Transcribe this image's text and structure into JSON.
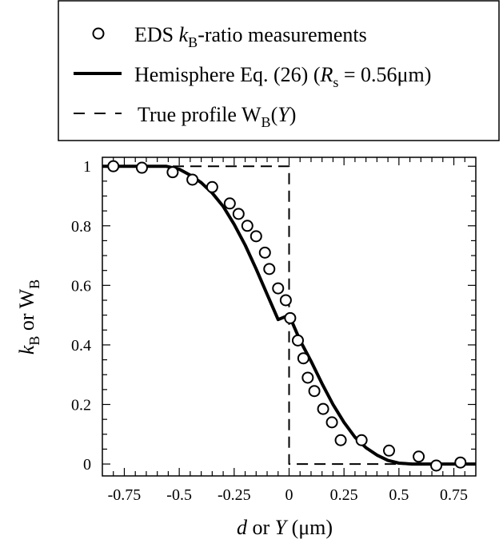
{
  "chart_data": {
    "type": "line",
    "xlabel": {
      "italic": "d",
      "mid": " or ",
      "italic2": "Y",
      "unit": " (μm)"
    },
    "ylabel": {
      "italic": "k",
      "sub": "B",
      "mid": " or W",
      "sub2": "B"
    },
    "xlim": [
      -0.85,
      0.85
    ],
    "ylim": [
      -0.04,
      1.03
    ],
    "x_ticks": [
      -0.75,
      -0.5,
      -0.25,
      0,
      0.25,
      0.5,
      0.75
    ],
    "x_tick_labels": [
      "-0.75",
      "-0.5",
      "-0.25",
      "0",
      "0.25",
      "0.5",
      "0.75"
    ],
    "y_ticks": [
      0,
      0.2,
      0.4,
      0.6,
      0.8,
      1
    ],
    "y_tick_labels": [
      "0",
      "0.2",
      "0.4",
      "0.6",
      "0.8",
      "1"
    ],
    "legend": {
      "placement": "top",
      "items": [
        {
          "kind": "marker",
          "parts": [
            {
              "t": "EDS "
            },
            {
              "t": "k",
              "i": true
            },
            {
              "t": "B",
              "sub": true
            },
            {
              "t": "-ratio measurements"
            }
          ]
        },
        {
          "kind": "solid",
          "parts": [
            {
              "t": "Hemisphere Eq. (26) ("
            },
            {
              "t": "R",
              "i": true
            },
            {
              "t": "s",
              "sub": true
            },
            {
              "t": " = 0.56μm)"
            }
          ]
        },
        {
          "kind": "dashed",
          "parts": [
            {
              "t": "True profile W"
            },
            {
              "t": "B",
              "sub": true
            },
            {
              "t": "("
            },
            {
              "t": "Y",
              "i": true
            },
            {
              "t": ")"
            }
          ]
        }
      ]
    },
    "series": [
      {
        "name": "EDS kB-ratio measurements",
        "style": "open-circle",
        "x": [
          -0.8,
          -0.67,
          -0.53,
          -0.44,
          -0.35,
          -0.27,
          -0.23,
          -0.19,
          -0.15,
          -0.11,
          -0.09,
          -0.05,
          -0.015,
          0.005,
          0.04,
          0.065,
          0.085,
          0.115,
          0.155,
          0.195,
          0.235,
          0.33,
          0.455,
          0.59,
          0.67,
          0.78
        ],
        "y": [
          1.0,
          0.995,
          0.98,
          0.955,
          0.93,
          0.875,
          0.84,
          0.8,
          0.765,
          0.71,
          0.655,
          0.59,
          0.55,
          0.49,
          0.415,
          0.355,
          0.29,
          0.245,
          0.185,
          0.14,
          0.08,
          0.08,
          0.045,
          0.025,
          -0.005,
          0.005
        ]
      },
      {
        "name": "Hemisphere Eq. (26) (Rs = 0.56μm)",
        "style": "solid",
        "x": [
          -0.85,
          -0.75,
          -0.65,
          -0.56,
          -0.5,
          -0.45,
          -0.4,
          -0.35,
          -0.3,
          -0.25,
          -0.2,
          -0.15,
          -0.1,
          -0.05,
          0,
          0.05,
          0.1,
          0.15,
          0.2,
          0.25,
          0.3,
          0.35,
          0.4,
          0.45,
          0.5,
          0.56,
          0.65,
          0.75,
          0.85
        ],
        "y": [
          1.0,
          1.0,
          1.0,
          1.0,
          0.99,
          0.97,
          0.945,
          0.91,
          0.865,
          0.805,
          0.735,
          0.655,
          0.57,
          0.485,
          0.5,
          0.415,
          0.345,
          0.27,
          0.2,
          0.14,
          0.09,
          0.055,
          0.03,
          0.012,
          0.003,
          0.0,
          0.0,
          0.0,
          0.0
        ]
      },
      {
        "name": "True profile WB(Y)",
        "style": "dashed",
        "x": [
          -0.85,
          0,
          0,
          0.85
        ],
        "y": [
          1.0,
          1.0,
          0.0,
          0.0
        ]
      }
    ]
  }
}
